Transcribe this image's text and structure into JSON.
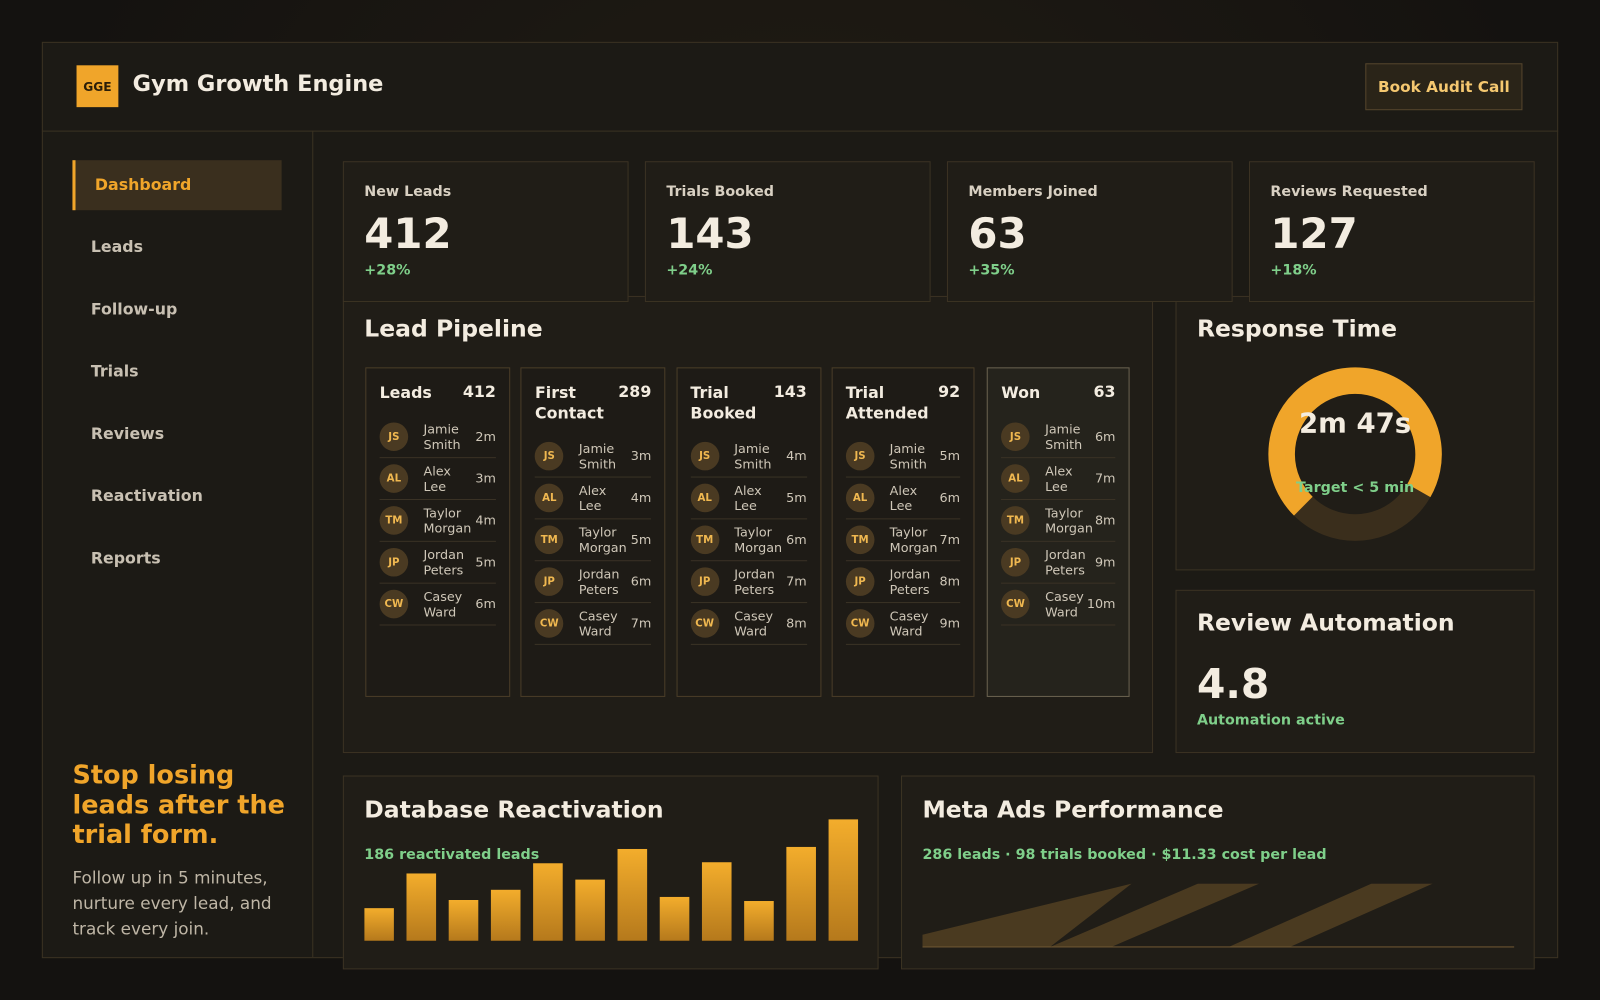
{
  "header": {
    "logo": "GGE",
    "title": "Gym Growth Engine",
    "button": "Book Audit Call"
  },
  "nav": {
    "items": [
      "Dashboard",
      "Leads",
      "Follow-up",
      "Trials",
      "Reviews",
      "Reactivation",
      "Reports"
    ]
  },
  "promo": {
    "headline": "Stop losing leads after the trial form.",
    "body": "Follow up in 5 minutes, nurture every lead, and track every join."
  },
  "kpis": [
    {
      "label": "New Leads",
      "value": "412",
      "change": "+28%"
    },
    {
      "label": "Trials Booked",
      "value": "143",
      "change": "+24%"
    },
    {
      "label": "Members Joined",
      "value": "63",
      "change": "+35%"
    },
    {
      "label": "Reviews Requested",
      "value": "127",
      "change": "+18%"
    }
  ],
  "pipeline": {
    "title": "Lead Pipeline",
    "columns": [
      {
        "name": "Leads",
        "count": "412",
        "cards": [
          {
            "initials": "JS",
            "name": "Jamie Smith",
            "time": "2m"
          },
          {
            "initials": "AL",
            "name": "Alex Lee",
            "time": "3m"
          },
          {
            "initials": "TM",
            "name": "Taylor Morgan",
            "time": "4m"
          },
          {
            "initials": "JP",
            "name": "Jordan Peters",
            "time": "5m"
          },
          {
            "initials": "CW",
            "name": "Casey Ward",
            "time": "6m"
          }
        ]
      },
      {
        "name": "First Contact",
        "count": "289",
        "cards": [
          {
            "initials": "JS",
            "name": "Jamie Smith",
            "time": "3m"
          },
          {
            "initials": "AL",
            "name": "Alex Lee",
            "time": "4m"
          },
          {
            "initials": "TM",
            "name": "Taylor Morgan",
            "time": "5m"
          },
          {
            "initials": "JP",
            "name": "Jordan Peters",
            "time": "6m"
          },
          {
            "initials": "CW",
            "name": "Casey Ward",
            "time": "7m"
          }
        ]
      },
      {
        "name": "Trial Booked",
        "count": "143",
        "cards": [
          {
            "initials": "JS",
            "name": "Jamie Smith",
            "time": "4m"
          },
          {
            "initials": "AL",
            "name": "Alex Lee",
            "time": "5m"
          },
          {
            "initials": "TM",
            "name": "Taylor Morgan",
            "time": "6m"
          },
          {
            "initials": "JP",
            "name": "Jordan Peters",
            "time": "7m"
          },
          {
            "initials": "CW",
            "name": "Casey Ward",
            "time": "8m"
          }
        ]
      },
      {
        "name": "Trial Attended",
        "count": "92",
        "cards": [
          {
            "initials": "JS",
            "name": "Jamie Smith",
            "time": "5m"
          },
          {
            "initials": "AL",
            "name": "Alex Lee",
            "time": "6m"
          },
          {
            "initials": "TM",
            "name": "Taylor Morgan",
            "time": "7m"
          },
          {
            "initials": "JP",
            "name": "Jordan Peters",
            "time": "8m"
          },
          {
            "initials": "CW",
            "name": "Casey Ward",
            "time": "9m"
          }
        ]
      },
      {
        "name": "Won",
        "count": "63",
        "cards": [
          {
            "initials": "JS",
            "name": "Jamie Smith",
            "time": "6m"
          },
          {
            "initials": "AL",
            "name": "Alex Lee",
            "time": "7m"
          },
          {
            "initials": "TM",
            "name": "Taylor Morgan",
            "time": "8m"
          },
          {
            "initials": "JP",
            "name": "Jordan Peters",
            "time": "9m"
          },
          {
            "initials": "CW",
            "name": "Casey Ward",
            "time": "10m"
          }
        ]
      }
    ]
  },
  "response_time": {
    "title": "Response Time",
    "value": "2m 47s",
    "target": "Target < 5 min"
  },
  "review_automation": {
    "title": "Review Automation",
    "value": "4.8",
    "status": "Automation active"
  },
  "database_reactivation": {
    "title": "Database Reactivation",
    "subtitle": "186 reactivated leads",
    "bars": [
      32,
      66,
      40,
      50,
      76,
      60,
      90,
      43,
      77,
      39,
      92,
      119
    ]
  },
  "meta_ads": {
    "title": "Meta Ads Performance",
    "subtitle": "286 leads · 98 trials booked · $11.33 cost per lead"
  }
}
